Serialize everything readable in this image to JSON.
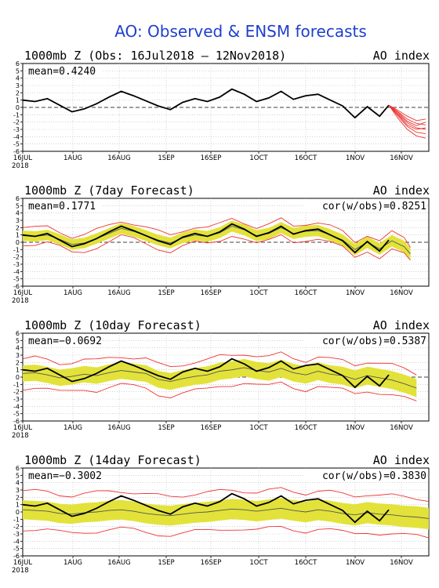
{
  "figure": {
    "title": "AO: Observed & ENSM forecasts",
    "year_label": "2018",
    "colors": {
      "title": "#1f3fcf",
      "observed": "#000000",
      "ensemble": "#ee3333",
      "spread": "#e2e23a",
      "grid": "#b8b8b8"
    }
  },
  "chart_data": [
    {
      "type": "line",
      "panel": "observed",
      "title": "1000mb Z (Obs: 16Jul2018 – 12Nov2018)",
      "right_title": "AO index",
      "mean_label": "mean=0.4240",
      "cor_label": "",
      "x_ticks": [
        "16JUL",
        "1AUG",
        "16AUG",
        "1SEP",
        "16SEP",
        "1OCT",
        "16OCT",
        "1NOV",
        "16NOV"
      ],
      "x_range_days": [
        0,
        132
      ],
      "ylim": [
        -6,
        6
      ],
      "y_ticks": [
        6,
        5,
        4,
        3,
        2,
        1,
        0,
        -1,
        -2,
        -3,
        -4,
        -5,
        -6
      ],
      "series": [
        {
          "role": "observed",
          "x": [
            0,
            4,
            8,
            12,
            16,
            20,
            24,
            28,
            32,
            36,
            40,
            44,
            48,
            52,
            56,
            60,
            64,
            68,
            72,
            76,
            80,
            84,
            88,
            92,
            96,
            100,
            104,
            108,
            112,
            116,
            119
          ],
          "values": [
            1.0,
            0.8,
            1.2,
            0.3,
            -0.6,
            -0.2,
            0.5,
            1.4,
            2.2,
            1.6,
            0.9,
            0.2,
            -0.3,
            0.7,
            1.2,
            0.8,
            1.4,
            2.5,
            1.8,
            0.8,
            1.3,
            2.2,
            1.1,
            1.6,
            1.8,
            1.0,
            0.2,
            -1.4,
            0.1,
            -1.2,
            0.3
          ]
        }
      ],
      "forecast": {
        "x": [
          119,
          122,
          125,
          128,
          131
        ],
        "members": [
          [
            0.3,
            -0.6,
            -1.6,
            -2.2,
            -2.4
          ],
          [
            0.3,
            -0.9,
            -2.1,
            -2.8,
            -3.0
          ],
          [
            0.3,
            -1.2,
            -2.6,
            -3.4,
            -3.6
          ],
          [
            0.3,
            -1.5,
            -3.0,
            -3.9,
            -4.2
          ],
          [
            0.3,
            -0.4,
            -1.2,
            -1.8,
            -1.6
          ],
          [
            0.3,
            -1.0,
            -2.4,
            -3.0,
            -2.8
          ],
          [
            0.3,
            -0.7,
            -1.9,
            -2.5,
            -2.0
          ]
        ]
      }
    },
    {
      "type": "line",
      "panel": "forecast7",
      "title": "1000mb Z (7day Forecast)",
      "right_title": "AO index",
      "mean_label": "mean=0.1771",
      "cor_label": "cor(w/obs)=0.8251",
      "x_ticks": [
        "16JUL",
        "1AUG",
        "16AUG",
        "1SEP",
        "16SEP",
        "1OCT",
        "16OCT",
        "1NOV",
        "16NOV"
      ],
      "x_range_days": [
        0,
        132
      ],
      "ylim": [
        -6,
        6
      ],
      "y_ticks": [
        6,
        5,
        4,
        3,
        2,
        1,
        0,
        -1,
        -2,
        -3,
        -4,
        -5,
        -6
      ],
      "observed": {
        "x": [
          0,
          4,
          8,
          12,
          16,
          20,
          24,
          28,
          32,
          36,
          40,
          44,
          48,
          52,
          56,
          60,
          64,
          68,
          72,
          76,
          80,
          84,
          88,
          92,
          96,
          100,
          104,
          108,
          112,
          116,
          119
        ],
        "values": [
          1.0,
          0.8,
          1.2,
          0.3,
          -0.6,
          -0.2,
          0.5,
          1.4,
          2.2,
          1.6,
          0.9,
          0.2,
          -0.3,
          0.7,
          1.2,
          0.8,
          1.4,
          2.5,
          1.8,
          0.8,
          1.3,
          2.2,
          1.1,
          1.6,
          1.8,
          1.0,
          0.2,
          -1.4,
          0.1,
          -1.2,
          0.3
        ]
      },
      "forecast_mean": {
        "x": [
          0,
          4,
          8,
          12,
          16,
          20,
          24,
          28,
          32,
          36,
          40,
          44,
          48,
          52,
          56,
          60,
          64,
          68,
          72,
          76,
          80,
          84,
          88,
          92,
          96,
          100,
          104,
          108,
          112,
          116,
          120,
          124,
          126
        ],
        "values": [
          0.9,
          0.8,
          1.0,
          0.4,
          -0.3,
          -0.1,
          0.5,
          1.2,
          1.9,
          1.5,
          0.9,
          0.3,
          -0.1,
          0.6,
          1.0,
          0.8,
          1.3,
          2.2,
          1.7,
          0.9,
          1.2,
          2.0,
          1.2,
          1.5,
          1.6,
          1.0,
          0.3,
          -1.0,
          0.0,
          -0.9,
          0.2,
          -0.6,
          -1.6
        ]
      },
      "spread": 0.7,
      "envelope": 1.1
    },
    {
      "type": "line",
      "panel": "forecast10",
      "title": "1000mb Z (10day Forecast)",
      "right_title": "AO index",
      "mean_label": "mean=−0.0692",
      "cor_label": "cor(w/obs)=0.5387",
      "x_ticks": [
        "16JUL",
        "1AUG",
        "16AUG",
        "1SEP",
        "16SEP",
        "1OCT",
        "16OCT",
        "1NOV",
        "16NOV"
      ],
      "x_range_days": [
        0,
        132
      ],
      "ylim": [
        -6,
        6
      ],
      "y_ticks": [
        6,
        5,
        4,
        3,
        2,
        1,
        0,
        -1,
        -2,
        -3,
        -4,
        -5,
        -6
      ],
      "observed": {
        "x": [
          0,
          4,
          8,
          12,
          16,
          20,
          24,
          28,
          32,
          36,
          40,
          44,
          48,
          52,
          56,
          60,
          64,
          68,
          72,
          76,
          80,
          84,
          88,
          92,
          96,
          100,
          104,
          108,
          112,
          116,
          119
        ],
        "values": [
          1.0,
          0.8,
          1.2,
          0.3,
          -0.6,
          -0.2,
          0.5,
          1.4,
          2.2,
          1.6,
          0.9,
          0.2,
          -0.3,
          0.7,
          1.2,
          0.8,
          1.4,
          2.5,
          1.8,
          0.8,
          1.3,
          2.2,
          1.1,
          1.6,
          1.8,
          1.0,
          0.2,
          -1.4,
          0.1,
          -1.2,
          0.3
        ]
      },
      "forecast_mean": {
        "x": [
          0,
          4,
          8,
          12,
          16,
          20,
          24,
          28,
          32,
          36,
          40,
          44,
          48,
          52,
          56,
          60,
          64,
          68,
          72,
          76,
          80,
          84,
          88,
          92,
          96,
          100,
          104,
          108,
          112,
          116,
          120,
          124,
          128
        ],
        "values": [
          0.5,
          0.6,
          0.3,
          -0.1,
          0.1,
          0.4,
          0.2,
          0.6,
          0.9,
          0.7,
          0.5,
          -0.3,
          -0.6,
          -0.2,
          0.1,
          0.3,
          0.8,
          1.0,
          1.3,
          0.9,
          0.7,
          1.2,
          0.6,
          0.3,
          0.8,
          0.4,
          0.2,
          -0.3,
          0.2,
          -0.1,
          -0.4,
          -0.9,
          -1.5
        ]
      },
      "spread": 1.1,
      "envelope": 2.0
    },
    {
      "type": "line",
      "panel": "forecast14",
      "title": "1000mb Z (14day Forecast)",
      "right_title": "AO index",
      "mean_label": "mean=−0.3002",
      "cor_label": "cor(w/obs)=0.3830",
      "x_ticks": [
        "16JUL",
        "1AUG",
        "16AUG",
        "1SEP",
        "16SEP",
        "1OCT",
        "16OCT",
        "1NOV",
        "16NOV"
      ],
      "x_range_days": [
        0,
        132
      ],
      "ylim": [
        -6,
        6
      ],
      "y_ticks": [
        6,
        5,
        4,
        3,
        2,
        1,
        0,
        -1,
        -2,
        -3,
        -4,
        -5,
        -6
      ],
      "observed": {
        "x": [
          0,
          4,
          8,
          12,
          16,
          20,
          24,
          28,
          32,
          36,
          40,
          44,
          48,
          52,
          56,
          60,
          64,
          68,
          72,
          76,
          80,
          84,
          88,
          92,
          96,
          100,
          104,
          108,
          112,
          116,
          119
        ],
        "values": [
          1.0,
          0.8,
          1.2,
          0.3,
          -0.6,
          -0.2,
          0.5,
          1.4,
          2.2,
          1.6,
          0.9,
          0.2,
          -0.3,
          0.7,
          1.2,
          0.8,
          1.4,
          2.5,
          1.8,
          0.8,
          1.3,
          2.2,
          1.1,
          1.6,
          1.8,
          1.0,
          0.2,
          -1.4,
          0.1,
          -1.2,
          0.3
        ]
      },
      "forecast_mean": {
        "x": [
          0,
          4,
          8,
          12,
          16,
          20,
          24,
          28,
          32,
          36,
          40,
          44,
          48,
          52,
          56,
          60,
          64,
          68,
          72,
          76,
          80,
          84,
          88,
          92,
          96,
          100,
          104,
          108,
          112,
          116,
          120,
          124,
          128,
          132
        ],
        "values": [
          0.3,
          0.2,
          0.1,
          -0.2,
          -0.3,
          -0.1,
          0.0,
          0.2,
          0.3,
          0.1,
          -0.2,
          -0.4,
          -0.5,
          -0.3,
          -0.1,
          0.0,
          0.2,
          0.4,
          0.3,
          0.1,
          0.3,
          0.5,
          0.2,
          0.0,
          0.3,
          0.1,
          -0.2,
          -0.4,
          -0.1,
          -0.3,
          -0.4,
          -0.6,
          -0.7,
          -0.9
        ]
      },
      "spread": 1.3,
      "envelope": 2.6
    }
  ]
}
